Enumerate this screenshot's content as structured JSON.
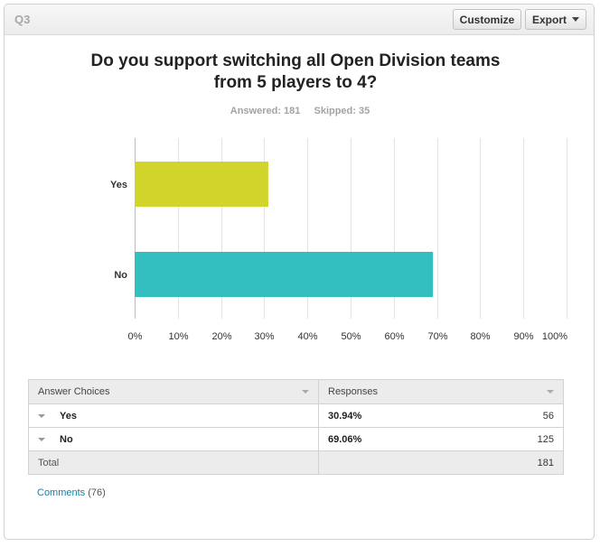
{
  "header": {
    "question_label": "Q3",
    "customize_label": "Customize",
    "export_label": "Export"
  },
  "summary": {
    "answered_label": "Answered: 181",
    "skipped_label": "Skipped: 35"
  },
  "chart_data": {
    "type": "bar",
    "orientation": "horizontal",
    "title": "Do you support switching all Open Division teams from 5 players to 4?",
    "categories": [
      "Yes",
      "No"
    ],
    "values": [
      30.94,
      69.06
    ],
    "colors": [
      "#d1d42a",
      "#33bfbf"
    ],
    "xlim": [
      0,
      100
    ],
    "x_ticks": [
      "0%",
      "10%",
      "20%",
      "30%",
      "40%",
      "50%",
      "60%",
      "70%",
      "80%",
      "90%",
      "100%"
    ],
    "grid": true,
    "xlabel": "",
    "ylabel": ""
  },
  "table": {
    "col_choices": "Answer Choices",
    "col_responses": "Responses",
    "rows": [
      {
        "choice": "Yes",
        "percent": "30.94%",
        "count": "56"
      },
      {
        "choice": "No",
        "percent": "69.06%",
        "count": "125"
      }
    ],
    "total_label": "Total",
    "total_count": "181"
  },
  "comments": {
    "link_label": "Comments",
    "count_label": "(76)"
  }
}
